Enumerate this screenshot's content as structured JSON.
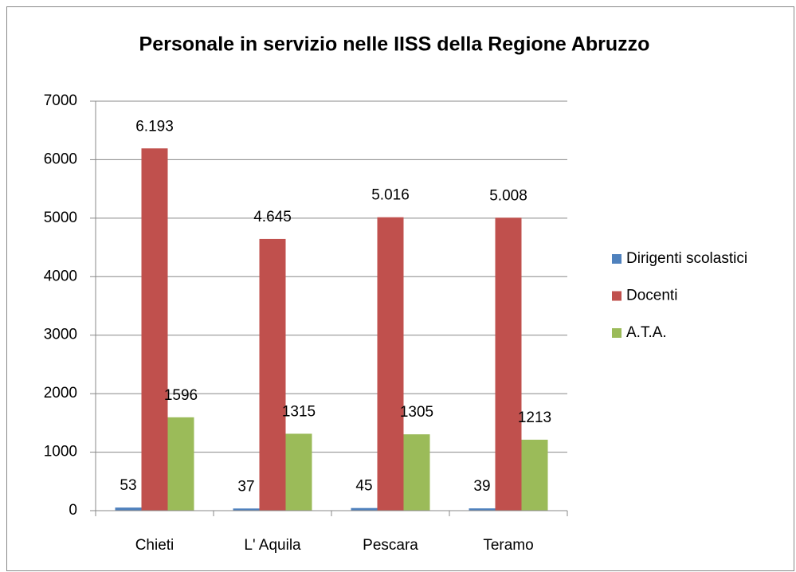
{
  "chart_data": {
    "type": "bar",
    "title": "Personale in servizio nelle IISS della Regione Abruzzo",
    "categories": [
      "Chieti",
      "L' Aquila",
      "Pescara",
      "Teramo"
    ],
    "series": [
      {
        "name": "Dirigenti scolastici",
        "color": "#4f81bd",
        "values": [
          53,
          37,
          45,
          39
        ]
      },
      {
        "name": "Docenti",
        "color": "#c0504d",
        "values": [
          6193,
          4645,
          5016,
          5008
        ],
        "value_labels": [
          "6.193",
          "4.645",
          "5.016",
          "5.008"
        ]
      },
      {
        "name": "A.T.A.",
        "color": "#9bbb59",
        "values": [
          1596,
          1315,
          1305,
          1213
        ]
      }
    ],
    "ylim": [
      0,
      7000
    ],
    "yticks": [
      0,
      1000,
      2000,
      3000,
      4000,
      5000,
      6000,
      7000
    ],
    "grid": true,
    "legend": "right"
  }
}
